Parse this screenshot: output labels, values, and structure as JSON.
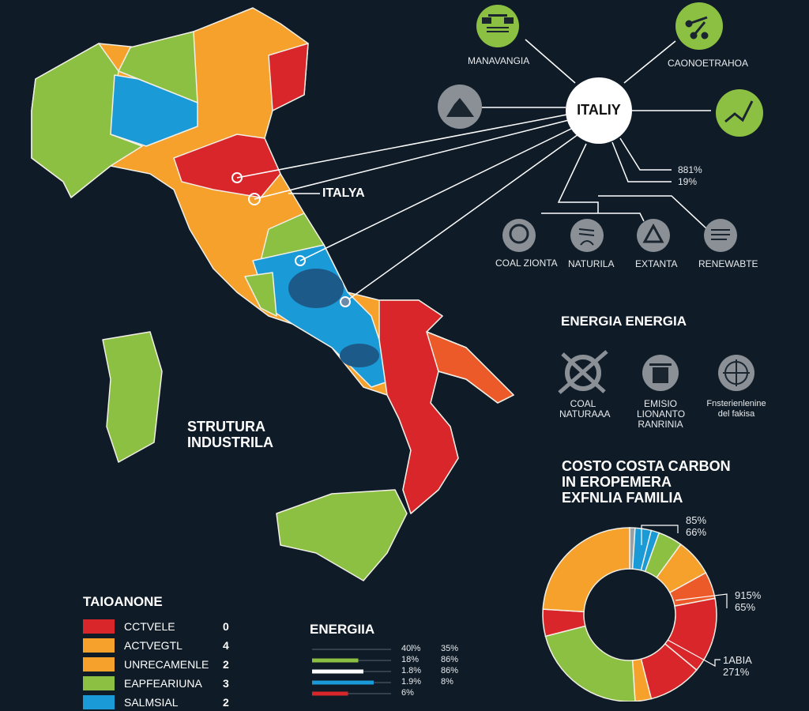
{
  "colors": {
    "background": "#0f1c28",
    "red": "#d9262b",
    "orange": "#f5a12c",
    "orange_red": "#ec5a2a",
    "green": "#8cc043",
    "blue": "#1a9ad6",
    "dark_blue": "#1c5a8a",
    "gray": "#9aa0a6",
    "white": "#ffffff"
  },
  "map": {
    "label": "ITALYA",
    "caption_line1": "STRUTURA",
    "caption_line2": "INDUSTRILA"
  },
  "diagram": {
    "center": "ITALIY",
    "nodes": [
      {
        "label": "MANAVANGIA",
        "icon": "factory-icon",
        "color": "green"
      },
      {
        "label": "CAONOETRAHOA",
        "icon": "network-tools-icon",
        "color": "green"
      },
      {
        "label": "",
        "icon": "mountain-icon",
        "color": "gray"
      },
      {
        "label": "",
        "icon": "growth-chart-icon",
        "color": "green"
      }
    ],
    "stats": [
      "881%",
      "19%"
    ],
    "bottom_nodes": [
      {
        "label": "COAL ZIONTA",
        "icon": "tree-icon"
      },
      {
        "label": "NATURILA",
        "icon": "gas-flame-icon"
      },
      {
        "label": "EXTANTA",
        "icon": "triangle-icon"
      },
      {
        "label": "RENEWABTE",
        "icon": "document-lines-icon"
      }
    ]
  },
  "energia_section": {
    "title": "ENERGIA ENERGIA",
    "items": [
      {
        "line1": "COAL",
        "line2": "NATURAAA",
        "line3": "",
        "icon": "crossed-tools-icon"
      },
      {
        "line1": "EMISIO",
        "line2": "LIONANTO",
        "line3": "RANRINIA",
        "icon": "container-icon"
      },
      {
        "line1": "Fnsterienlenine",
        "line2": "del fakisa",
        "line3": "",
        "icon": "crosshair-icon"
      }
    ]
  },
  "cost_title": [
    "COSTO COSTA CARBON",
    "IN EROPEMERA",
    "EXFNLIA FAMILIA"
  ],
  "legend": {
    "title": "TAIOANONE",
    "items": [
      {
        "label": "CCTVELE",
        "value": "0",
        "color": "#d9262b"
      },
      {
        "label": "ACTVEGTL",
        "value": "4",
        "color": "#f5a12c"
      },
      {
        "label": "UNRECAMENLE",
        "value": "2",
        "color": "#f5a12c"
      },
      {
        "label": "EAPFEARIUNA",
        "value": "3",
        "color": "#8cc043"
      },
      {
        "label": "SALMSIAL",
        "value": "2",
        "color": "#1a9ad6"
      }
    ]
  },
  "energia_bars": {
    "title": "ENERGIIA",
    "bars": [
      {
        "color": "#5a6570",
        "fill": 0,
        "pct": "40l%",
        "pct2": "35%"
      },
      {
        "color": "#8cc043",
        "fill": 0.45,
        "pct": "18%",
        "pct2": "86%"
      },
      {
        "color": "#ffffff",
        "fill": 0.5,
        "pct": "1.8%",
        "pct2": "86%"
      },
      {
        "color": "#1a9ad6",
        "fill": 0.6,
        "pct": "1.9%",
        "pct2": "8%"
      },
      {
        "color": "#d9262b",
        "fill": 0.35,
        "pct": "6%",
        "pct2": ""
      }
    ]
  },
  "chart_data": {
    "type": "pie",
    "donut": true,
    "slices": [
      {
        "value": 1,
        "color": "#9aa0a6"
      },
      {
        "value": 3,
        "color": "#1a9ad6"
      },
      {
        "value": 1.5,
        "color": "#1a9ad6"
      },
      {
        "value": 4.5,
        "color": "#8cc043"
      },
      {
        "value": 7,
        "color": "#f5a12c"
      },
      {
        "value": 5,
        "color": "#ec5a2a"
      },
      {
        "value": 14,
        "color": "#d9262b"
      },
      {
        "value": 10,
        "color": "#d9262b"
      },
      {
        "value": 3,
        "color": "#f5a12c"
      },
      {
        "value": 22,
        "color": "#8cc043"
      },
      {
        "value": 5,
        "color": "#d9262b"
      },
      {
        "value": 24,
        "color": "#f5a12c"
      }
    ],
    "annotations": [
      {
        "line1": "85%",
        "line2": "66%"
      },
      {
        "line1": "915%",
        "line2": "65%"
      },
      {
        "line1": "1ABIA",
        "line2": "271%"
      }
    ]
  }
}
